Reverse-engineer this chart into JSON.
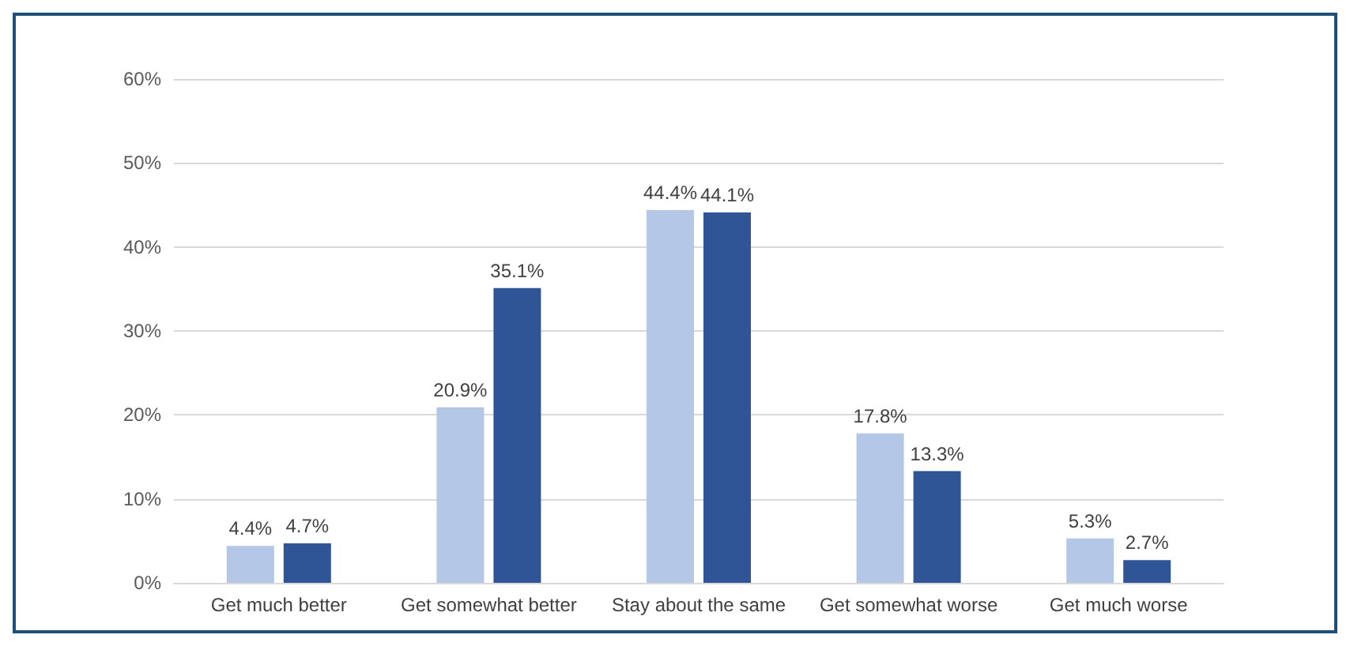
{
  "chart_data": {
    "type": "bar",
    "categories": [
      "Get much better",
      "Get somewhat better",
      "Stay about the same",
      "Get somewhat worse",
      "Get much worse"
    ],
    "series": [
      {
        "color": "#b4c7e7",
        "values": [
          4.4,
          20.9,
          44.4,
          17.8,
          5.3
        ],
        "value_labels": [
          "4.4%",
          "20.9%",
          "44.4%",
          "17.8%",
          "5.3%"
        ]
      },
      {
        "color": "#2f5597",
        "values": [
          4.7,
          35.1,
          44.1,
          13.3,
          2.7
        ],
        "value_labels": [
          "4.7%",
          "35.1%",
          "44.1%",
          "13.3%",
          "2.7%"
        ]
      }
    ],
    "ylim": [
      0,
      60
    ],
    "yticks": [
      {
        "value": 0,
        "label": "0%"
      },
      {
        "value": 10,
        "label": "10%"
      },
      {
        "value": 20,
        "label": "20%"
      },
      {
        "value": 30,
        "label": "30%"
      },
      {
        "value": 40,
        "label": "40%"
      },
      {
        "value": 50,
        "label": "50%"
      },
      {
        "value": 60,
        "label": "60%"
      }
    ],
    "grid": "y"
  }
}
